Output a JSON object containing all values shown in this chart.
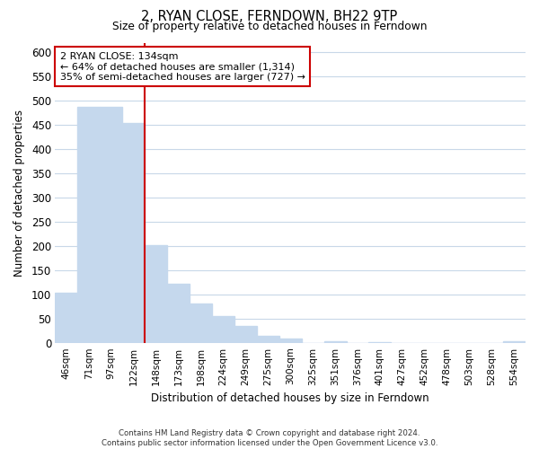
{
  "title": "2, RYAN CLOSE, FERNDOWN, BH22 9TP",
  "subtitle": "Size of property relative to detached houses in Ferndown",
  "xlabel": "Distribution of detached houses by size in Ferndown",
  "ylabel": "Number of detached properties",
  "bar_labels": [
    "46sqm",
    "71sqm",
    "97sqm",
    "122sqm",
    "148sqm",
    "173sqm",
    "198sqm",
    "224sqm",
    "249sqm",
    "275sqm",
    "300sqm",
    "325sqm",
    "351sqm",
    "376sqm",
    "401sqm",
    "427sqm",
    "452sqm",
    "478sqm",
    "503sqm",
    "528sqm",
    "554sqm"
  ],
  "bar_values": [
    105,
    488,
    488,
    455,
    202,
    122,
    83,
    57,
    35,
    16,
    10,
    0,
    5,
    0,
    3,
    0,
    0,
    0,
    0,
    0,
    5
  ],
  "bar_color": "#c5d8ed",
  "vline_x": 3.5,
  "vline_color": "#cc0000",
  "annotation_title": "2 RYAN CLOSE: 134sqm",
  "annotation_line1": "← 64% of detached houses are smaller (1,314)",
  "annotation_line2": "35% of semi-detached houses are larger (727) →",
  "annotation_box_color": "#ffffff",
  "annotation_box_edge": "#cc0000",
  "ylim": [
    0,
    620
  ],
  "yticks": [
    0,
    50,
    100,
    150,
    200,
    250,
    300,
    350,
    400,
    450,
    500,
    550,
    600
  ],
  "footer1": "Contains HM Land Registry data © Crown copyright and database right 2024.",
  "footer2": "Contains public sector information licensed under the Open Government Licence v3.0.",
  "background_color": "#ffffff",
  "grid_color": "#c8d8e8"
}
